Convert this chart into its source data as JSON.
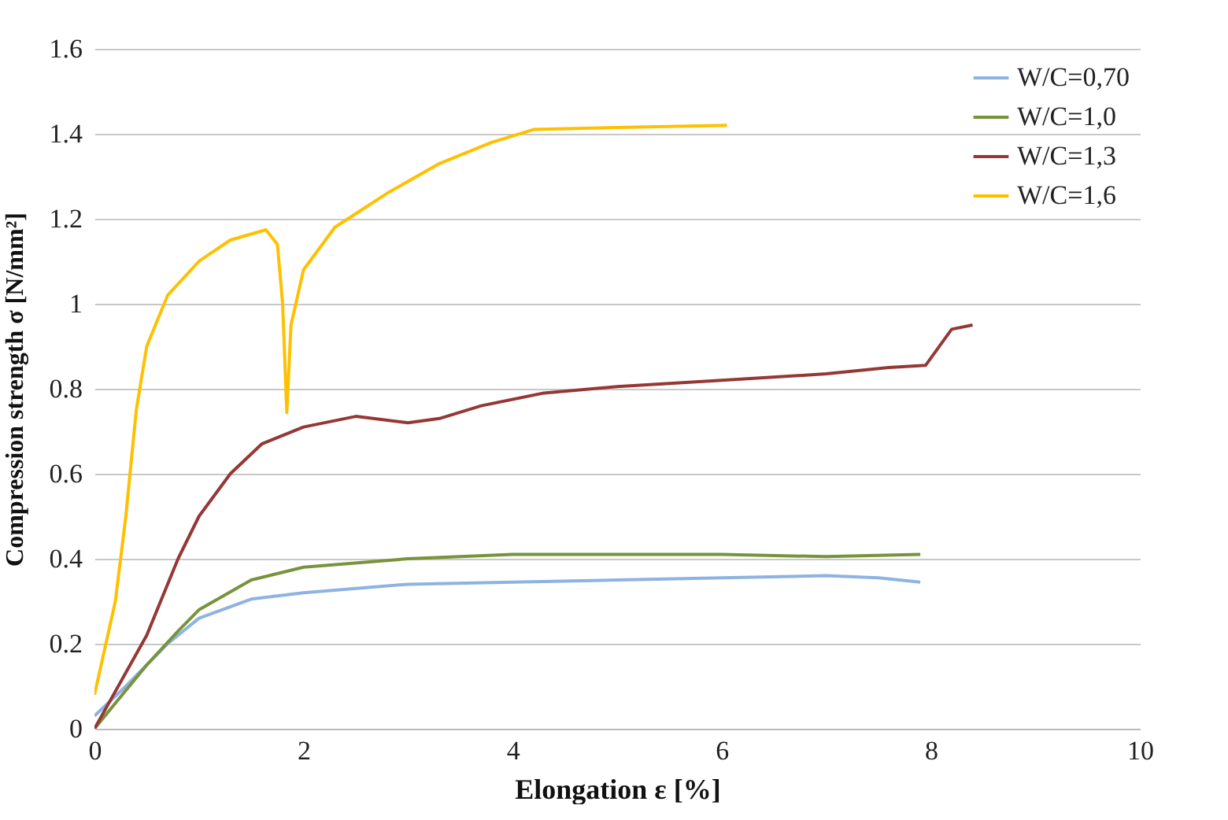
{
  "chart_data": {
    "type": "line",
    "xlabel": "Elongation ε [%]",
    "ylabel": "Compression strength σ [N/mm²]",
    "xlim": [
      0,
      10
    ],
    "xticks": [
      0,
      2,
      4,
      6,
      8,
      10
    ],
    "ylim": [
      0,
      1.6
    ],
    "yticks": [
      0,
      0.2,
      0.4,
      0.6,
      0.8,
      1,
      1.2,
      1.4,
      1.6
    ],
    "grid": "y",
    "legend": "top right",
    "marker": "none",
    "line_style": "solid",
    "series": [
      {
        "name": "W/C=0,70",
        "color": "#8db3e2",
        "x": [
          0,
          0.3,
          0.7,
          1,
          1.5,
          2,
          3,
          4,
          5,
          6,
          7,
          7.5,
          7.9
        ],
        "values": [
          0.03,
          0.1,
          0.2,
          0.26,
          0.305,
          0.32,
          0.34,
          0.345,
          0.35,
          0.355,
          0.36,
          0.355,
          0.345
        ]
      },
      {
        "name": "W/C=1,0",
        "color": "#77933c",
        "x": [
          0,
          0.5,
          0.8,
          1,
          1.5,
          2,
          3,
          4,
          5,
          6,
          7,
          7.9
        ],
        "values": [
          0,
          0.15,
          0.23,
          0.28,
          0.35,
          0.38,
          0.4,
          0.41,
          0.41,
          0.41,
          0.405,
          0.41
        ]
      },
      {
        "name": "W/C=1,3",
        "color": "#953735",
        "x": [
          0,
          0.5,
          0.8,
          1,
          1.3,
          1.6,
          2,
          2.5,
          3,
          3.3,
          3.7,
          4.3,
          5,
          6,
          7,
          7.6,
          7.95,
          8.2,
          8.4
        ],
        "values": [
          0,
          0.22,
          0.4,
          0.5,
          0.6,
          0.67,
          0.71,
          0.735,
          0.72,
          0.73,
          0.76,
          0.79,
          0.805,
          0.82,
          0.835,
          0.85,
          0.855,
          0.94,
          0.95
        ]
      },
      {
        "name": "W/C=1,6",
        "color": "#ffc000",
        "x": [
          0,
          0.2,
          0.3,
          0.4,
          0.5,
          0.7,
          1,
          1.3,
          1.64,
          1.75,
          1.8,
          1.84,
          1.88,
          2,
          2.3,
          2.8,
          3.3,
          3.8,
          4.2,
          5,
          6.05
        ],
        "values": [
          0.08,
          0.3,
          0.5,
          0.75,
          0.9,
          1.02,
          1.1,
          1.15,
          1.174,
          1.14,
          1.0,
          0.744,
          0.95,
          1.08,
          1.18,
          1.26,
          1.33,
          1.38,
          1.41,
          1.415,
          1.42
        ]
      }
    ]
  }
}
